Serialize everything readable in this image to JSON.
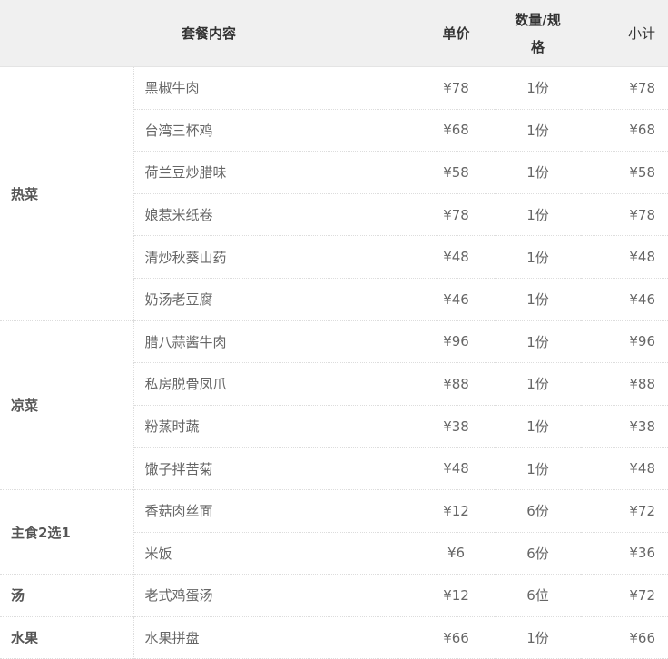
{
  "header": {
    "content": "套餐内容",
    "price": "单价",
    "qty": "数量/规格",
    "subtotal": "小计"
  },
  "groups": [
    {
      "category": "热菜",
      "items": [
        {
          "name": "黑椒牛肉",
          "price": "¥78",
          "qty": "1份",
          "subtotal": "¥78"
        },
        {
          "name": "台湾三杯鸡",
          "price": "¥68",
          "qty": "1份",
          "subtotal": "¥68"
        },
        {
          "name": "荷兰豆炒腊味",
          "price": "¥58",
          "qty": "1份",
          "subtotal": "¥58"
        },
        {
          "name": "娘惹米纸卷",
          "price": "¥78",
          "qty": "1份",
          "subtotal": "¥78"
        },
        {
          "name": "清炒秋葵山药",
          "price": "¥48",
          "qty": "1份",
          "subtotal": "¥48"
        },
        {
          "name": "奶汤老豆腐",
          "price": "¥46",
          "qty": "1份",
          "subtotal": "¥46"
        }
      ]
    },
    {
      "category": "凉菜",
      "items": [
        {
          "name": "腊八蒜酱牛肉",
          "price": "¥96",
          "qty": "1份",
          "subtotal": "¥96"
        },
        {
          "name": "私房脱骨凤爪",
          "price": "¥88",
          "qty": "1份",
          "subtotal": "¥88"
        },
        {
          "name": "粉蒸时蔬",
          "price": "¥38",
          "qty": "1份",
          "subtotal": "¥38"
        },
        {
          "name": "馓子拌苦菊",
          "price": "¥48",
          "qty": "1份",
          "subtotal": "¥48"
        }
      ]
    },
    {
      "category": "主食2选1",
      "items": [
        {
          "name": "香菇肉丝面",
          "price": "¥12",
          "qty": "6份",
          "subtotal": "¥72"
        },
        {
          "name": "米饭",
          "price": "¥6",
          "qty": "6份",
          "subtotal": "¥36"
        }
      ]
    },
    {
      "category": "汤",
      "items": [
        {
          "name": "老式鸡蛋汤",
          "price": "¥12",
          "qty": "6位",
          "subtotal": "¥72"
        }
      ]
    },
    {
      "category": "水果",
      "items": [
        {
          "name": "水果拼盘",
          "price": "¥66",
          "qty": "1份",
          "subtotal": "¥66"
        }
      ]
    }
  ]
}
